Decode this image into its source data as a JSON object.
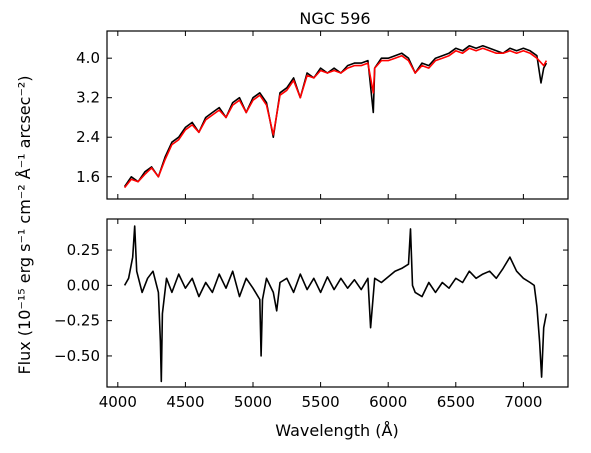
{
  "chart_data": [
    {
      "type": "line",
      "title": "NGC 596",
      "xlabel": "",
      "ylabel": "Flux (10⁻¹⁵ erg s⁻¹ cm⁻² Å⁻¹ arcsec⁻²)",
      "xlim": [
        3920,
        7330
      ],
      "ylim": [
        1.15,
        4.55
      ],
      "xticks": [
        4000,
        4500,
        5000,
        5500,
        6000,
        6500,
        7000
      ],
      "yticks": [
        1.6,
        2.4,
        3.2,
        4.0
      ],
      "ytick_labels": [
        "1.6",
        "2.4",
        "3.2",
        "4.0"
      ],
      "grid": false,
      "series": [
        {
          "color": "#000000",
          "x": [
            4050,
            4100,
            4150,
            4200,
            4250,
            4300,
            4350,
            4400,
            4450,
            4500,
            4550,
            4600,
            4650,
            4700,
            4750,
            4800,
            4850,
            4900,
            4950,
            5000,
            5050,
            5100,
            5150,
            5200,
            5250,
            5300,
            5350,
            5400,
            5450,
            5500,
            5550,
            5600,
            5650,
            5700,
            5750,
            5800,
            5850,
            5890,
            5900,
            5950,
            6000,
            6050,
            6100,
            6150,
            6200,
            6250,
            6300,
            6350,
            6400,
            6450,
            6500,
            6550,
            6600,
            6650,
            6700,
            6750,
            6800,
            6850,
            6900,
            6950,
            7000,
            7050,
            7100,
            7130,
            7150,
            7170
          ],
          "y": [
            1.4,
            1.6,
            1.5,
            1.7,
            1.8,
            1.6,
            2.0,
            2.3,
            2.4,
            2.6,
            2.7,
            2.5,
            2.8,
            2.9,
            3.0,
            2.8,
            3.1,
            3.2,
            2.9,
            3.2,
            3.3,
            3.1,
            2.4,
            3.3,
            3.4,
            3.6,
            3.2,
            3.7,
            3.6,
            3.8,
            3.7,
            3.8,
            3.7,
            3.85,
            3.9,
            3.9,
            3.95,
            2.9,
            3.8,
            4.0,
            4.0,
            4.05,
            4.1,
            4.0,
            3.7,
            3.9,
            3.85,
            4.0,
            4.05,
            4.1,
            4.2,
            4.15,
            4.25,
            4.2,
            4.25,
            4.2,
            4.15,
            4.1,
            4.2,
            4.15,
            4.2,
            4.15,
            4.05,
            3.5,
            3.8,
            3.9
          ]
        },
        {
          "color": "#ff0000",
          "x": [
            4050,
            4100,
            4150,
            4200,
            4250,
            4300,
            4350,
            4400,
            4450,
            4500,
            4550,
            4600,
            4650,
            4700,
            4750,
            4800,
            4850,
            4900,
            4950,
            5000,
            5050,
            5100,
            5150,
            5200,
            5250,
            5300,
            5350,
            5400,
            5450,
            5500,
            5550,
            5600,
            5650,
            5700,
            5750,
            5800,
            5850,
            5890,
            5900,
            5950,
            6000,
            6050,
            6100,
            6150,
            6200,
            6250,
            6300,
            6350,
            6400,
            6450,
            6500,
            6550,
            6600,
            6650,
            6700,
            6750,
            6800,
            6850,
            6900,
            6950,
            7000,
            7050,
            7100,
            7150,
            7170
          ],
          "y": [
            1.38,
            1.55,
            1.5,
            1.65,
            1.78,
            1.6,
            1.95,
            2.25,
            2.35,
            2.55,
            2.65,
            2.5,
            2.75,
            2.85,
            2.95,
            2.8,
            3.05,
            3.15,
            2.9,
            3.15,
            3.25,
            3.05,
            2.45,
            3.25,
            3.35,
            3.55,
            3.2,
            3.65,
            3.6,
            3.75,
            3.7,
            3.75,
            3.7,
            3.8,
            3.85,
            3.85,
            3.9,
            3.3,
            3.8,
            3.95,
            3.95,
            4.0,
            4.05,
            3.95,
            3.7,
            3.85,
            3.8,
            3.95,
            4.0,
            4.05,
            4.15,
            4.1,
            4.2,
            4.15,
            4.2,
            4.15,
            4.1,
            4.1,
            4.15,
            4.1,
            4.15,
            4.1,
            4.0,
            3.85,
            3.95
          ]
        }
      ]
    },
    {
      "type": "line",
      "title": "",
      "xlabel": "Wavelength (Å)",
      "ylabel": "",
      "xlim": [
        3920,
        7330
      ],
      "ylim": [
        -0.72,
        0.47
      ],
      "xticks": [
        4000,
        4500,
        5000,
        5500,
        6000,
        6500,
        7000
      ],
      "xtick_labels": [
        "4000",
        "4500",
        "5000",
        "5500",
        "6000",
        "6500",
        "7000"
      ],
      "yticks": [
        -0.5,
        -0.25,
        0.0,
        0.25
      ],
      "ytick_labels": [
        "−0.50",
        "−0.25",
        "0.00",
        "0.25"
      ],
      "grid": false,
      "series": [
        {
          "color": "#000000",
          "x": [
            4050,
            4080,
            4110,
            4125,
            4140,
            4180,
            4220,
            4260,
            4300,
            4315,
            4322,
            4330,
            4360,
            4400,
            4450,
            4500,
            4550,
            4600,
            4650,
            4700,
            4750,
            4800,
            4850,
            4900,
            4950,
            5000,
            5050,
            5060,
            5070,
            5100,
            5150,
            5175,
            5200,
            5250,
            5300,
            5350,
            5400,
            5450,
            5500,
            5550,
            5600,
            5650,
            5700,
            5750,
            5800,
            5850,
            5870,
            5900,
            5950,
            6000,
            6050,
            6100,
            6150,
            6165,
            6180,
            6200,
            6250,
            6300,
            6350,
            6400,
            6450,
            6500,
            6550,
            6600,
            6650,
            6700,
            6750,
            6800,
            6850,
            6900,
            6950,
            7000,
            7050,
            7080,
            7100,
            7120,
            7135,
            7150,
            7170
          ],
          "y": [
            0.0,
            0.05,
            0.2,
            0.42,
            0.1,
            -0.05,
            0.05,
            0.1,
            -0.05,
            -0.4,
            -0.68,
            -0.2,
            0.05,
            -0.05,
            0.08,
            -0.02,
            0.05,
            -0.08,
            0.02,
            -0.05,
            0.08,
            -0.02,
            0.1,
            -0.08,
            0.05,
            -0.02,
            -0.1,
            -0.5,
            -0.1,
            0.05,
            -0.05,
            -0.18,
            0.02,
            0.05,
            -0.05,
            0.08,
            -0.03,
            0.05,
            -0.05,
            0.06,
            -0.03,
            0.05,
            -0.02,
            0.04,
            -0.03,
            0.05,
            -0.3,
            0.05,
            0.02,
            0.06,
            0.1,
            0.12,
            0.15,
            0.4,
            0.0,
            -0.05,
            -0.08,
            0.02,
            -0.05,
            0.02,
            -0.02,
            0.05,
            0.02,
            0.1,
            0.05,
            0.08,
            0.1,
            0.05,
            0.12,
            0.2,
            0.1,
            0.05,
            0.02,
            0.0,
            -0.15,
            -0.4,
            -0.65,
            -0.3,
            -0.2
          ]
        }
      ]
    }
  ]
}
